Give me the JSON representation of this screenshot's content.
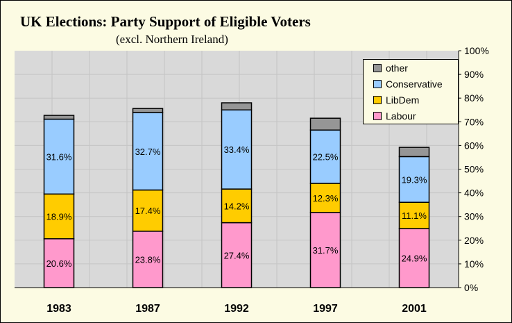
{
  "chart_data": {
    "type": "bar",
    "stacked": true,
    "title": "UK Elections: Party Support of Eligible Voters",
    "subtitle": "(excl. Northern Ireland)",
    "categories": [
      "1983",
      "1987",
      "1992",
      "1997",
      "2001"
    ],
    "series": [
      {
        "name": "Labour",
        "color": "#ff99cc",
        "values": [
          20.6,
          23.8,
          27.4,
          31.7,
          24.9
        ],
        "labels": [
          "20.6%",
          "23.8%",
          "27.4%",
          "31.7%",
          "24.9%"
        ]
      },
      {
        "name": "LibDem",
        "color": "#ffcc00",
        "values": [
          18.9,
          17.4,
          14.2,
          12.3,
          11.1
        ],
        "labels": [
          "18.9%",
          "17.4%",
          "14.2%",
          "12.3%",
          "11.1%"
        ]
      },
      {
        "name": "Conservative",
        "color": "#99ccff",
        "values": [
          31.6,
          32.7,
          33.4,
          22.5,
          19.3
        ],
        "labels": [
          "31.6%",
          "32.7%",
          "33.4%",
          "22.5%",
          "19.3%"
        ]
      },
      {
        "name": "other",
        "color": "#969696",
        "values": [
          1.6,
          1.7,
          3.0,
          5.0,
          3.9
        ]
      }
    ],
    "yticks": [
      "0%",
      "10%",
      "20%",
      "30%",
      "40%",
      "50%",
      "60%",
      "70%",
      "80%",
      "90%",
      "100%"
    ],
    "ylim": [
      0,
      100
    ],
    "yaxis_side": "right",
    "grid": true,
    "legend": {
      "placement": "top-right",
      "entries": [
        "other",
        "Conservative",
        "LibDem",
        "Labour"
      ]
    }
  }
}
